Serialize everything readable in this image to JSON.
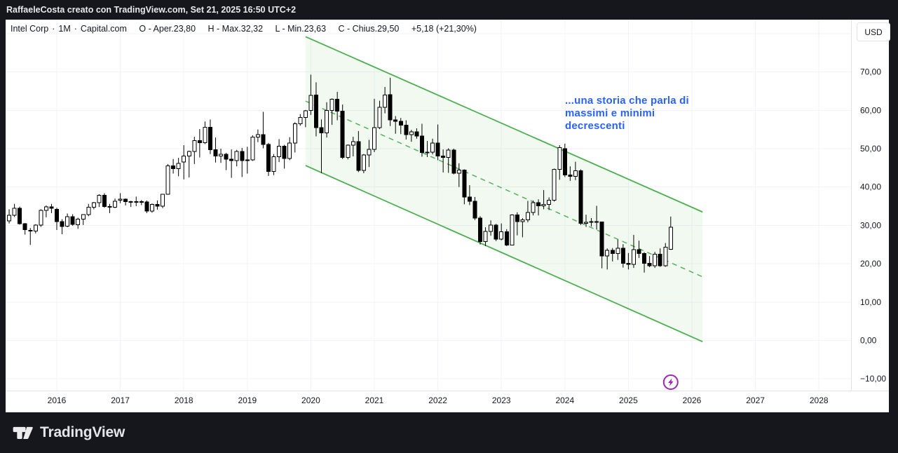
{
  "header": {
    "text": "RaffaeleCosta creato con TradingView.com, Set 21, 2025 16:50 UTC+2"
  },
  "legend": {
    "symbol": "Intel Corp",
    "sep": "·",
    "interval": "1M",
    "exchange": "Capital.com",
    "open_label": "O - Aper.",
    "open": "23,80",
    "high_label": "H - Max.",
    "high": "32,32",
    "low_label": "L - Min.",
    "low": "23,63",
    "close_label": "C - Chius.",
    "close": "29,50",
    "change": "+5,18 (+21,30%)"
  },
  "annotation": {
    "lines": [
      "...una storia che parla di",
      "massimi e minimi",
      "decrescenti"
    ],
    "color": "#2962ff"
  },
  "price_axis": {
    "currency_button": "USD",
    "ticks": [
      {
        "value": 70,
        "label": "70,00"
      },
      {
        "value": 60,
        "label": "60,00"
      },
      {
        "value": 50,
        "label": "50,00"
      },
      {
        "value": 40,
        "label": "40,00"
      },
      {
        "value": 30,
        "label": "30,00"
      },
      {
        "value": 20,
        "label": "20,00"
      },
      {
        "value": 10,
        "label": "10,00"
      },
      {
        "value": 0,
        "label": "0,00"
      },
      {
        "value": -10,
        "label": "−10,00"
      }
    ]
  },
  "time_axis": {
    "years": [
      "2016",
      "2017",
      "2018",
      "2019",
      "2020",
      "2021",
      "2022",
      "2023",
      "2024",
      "2025",
      "2026",
      "2027",
      "2028"
    ]
  },
  "footer": {
    "brand": "TradingView"
  },
  "colors": {
    "chrome_bg": "#16171c",
    "chrome_text": "#e8eaed",
    "panel_bg": "#ffffff",
    "grid": "#f0f3fa",
    "axis_border": "#e0e3eb",
    "text": "#131722",
    "channel": "#4caf50",
    "candle_up_fill": "#ffffff",
    "candle_down_fill": "#000000",
    "candle_border": "#000000",
    "event": "#9c27b0",
    "annotation_blue": "#2962ff"
  },
  "chart_data": {
    "type": "candlestick",
    "title": "Intel Corp · 1M · Capital.com",
    "currency": "USD",
    "interval": "monthly",
    "start_month": "2015-04",
    "last_month": "2025-09",
    "last_candle": {
      "open": 23.8,
      "high": 32.32,
      "low": 23.63,
      "close": 29.5,
      "change": 5.18,
      "change_pct": 21.3
    },
    "y_axis": {
      "labeled_ticks": [
        70,
        60,
        50,
        40,
        30,
        20,
        10,
        0,
        -10
      ],
      "gridlines": [
        80,
        70,
        60,
        50,
        40,
        30,
        20,
        10,
        0,
        -10
      ],
      "visible_range": [
        -13,
        83
      ]
    },
    "x_axis": {
      "gridline_years": [
        2016,
        2017,
        2018,
        2019,
        2020,
        2021,
        2022,
        2023,
        2024,
        2025,
        2026,
        2027,
        2028
      ]
    },
    "ohlc_monthly": [
      [
        31.2,
        34.2,
        30.5,
        32.6
      ],
      [
        32.6,
        35.6,
        32.2,
        34.5
      ],
      [
        34.5,
        34.9,
        30.2,
        30.4
      ],
      [
        30.4,
        30.6,
        27.6,
        28.9
      ],
      [
        28.7,
        29.3,
        24.9,
        28.5
      ],
      [
        28.5,
        30.3,
        27.9,
        30.1
      ],
      [
        30.1,
        34.2,
        29.6,
        33.9
      ],
      [
        33.9,
        35.2,
        32.1,
        34.8
      ],
      [
        34.8,
        35.6,
        33.2,
        34.5
      ],
      [
        34.2,
        34.6,
        28.8,
        31.0
      ],
      [
        31.0,
        31.6,
        27.7,
        29.7
      ],
      [
        29.8,
        33.1,
        29.5,
        32.3
      ],
      [
        32.3,
        32.9,
        29.9,
        30.3
      ],
      [
        30.2,
        32.0,
        29.1,
        31.6
      ],
      [
        31.6,
        32.9,
        30.1,
        32.8
      ],
      [
        32.8,
        35.6,
        32.4,
        34.7
      ],
      [
        34.7,
        36.1,
        34.2,
        35.9
      ],
      [
        35.9,
        38.1,
        34.8,
        37.8
      ],
      [
        37.8,
        38.4,
        34.6,
        34.9
      ],
      [
        34.9,
        35.6,
        33.2,
        34.7
      ],
      [
        34.7,
        37.0,
        34.5,
        36.3
      ],
      [
        36.6,
        38.4,
        35.8,
        36.8
      ],
      [
        36.8,
        37.0,
        35.2,
        36.2
      ],
      [
        36.2,
        36.4,
        34.8,
        36.1
      ],
      [
        36.1,
        37.5,
        35.0,
        36.2
      ],
      [
        36.2,
        36.6,
        35.3,
        36.1
      ],
      [
        36.1,
        36.5,
        33.2,
        33.7
      ],
      [
        33.7,
        35.7,
        33.3,
        35.5
      ],
      [
        35.5,
        36.5,
        34.1,
        35.0
      ],
      [
        35.0,
        38.2,
        34.5,
        38.1
      ],
      [
        38.1,
        46.0,
        38.0,
        45.5
      ],
      [
        45.5,
        47.3,
        43.5,
        44.8
      ],
      [
        44.8,
        47.6,
        42.8,
        46.2
      ],
      [
        46.5,
        50.9,
        42.0,
        48.1
      ],
      [
        48.1,
        49.5,
        42.5,
        49.3
      ],
      [
        49.3,
        53.1,
        46.0,
        52.1
      ],
      [
        52.1,
        55.1,
        47.7,
        51.6
      ],
      [
        51.6,
        57.1,
        51.2,
        55.6
      ],
      [
        55.6,
        57.6,
        48.6,
        49.7
      ],
      [
        49.7,
        52.9,
        46.4,
        48.1
      ],
      [
        48.1,
        50.0,
        46.3,
        48.5
      ],
      [
        48.5,
        48.9,
        44.4,
        47.3
      ],
      [
        47.3,
        49.8,
        42.4,
        46.9
      ],
      [
        46.9,
        49.7,
        45.4,
        49.3
      ],
      [
        49.3,
        50.2,
        42.6,
        46.9
      ],
      [
        46.9,
        50.5,
        43.5,
        47.1
      ],
      [
        47.1,
        53.5,
        46.8,
        53.0
      ],
      [
        53.0,
        55.0,
        51.7,
        53.7
      ],
      [
        53.7,
        59.6,
        50.1,
        51.1
      ],
      [
        51.1,
        51.5,
        42.9,
        44.1
      ],
      [
        44.1,
        48.6,
        43.1,
        47.9
      ],
      [
        47.9,
        52.5,
        46.5,
        50.6
      ],
      [
        50.6,
        51.0,
        44.8,
        47.4
      ],
      [
        47.4,
        53.0,
        47.0,
        51.5
      ],
      [
        51.5,
        56.9,
        49.0,
        56.5
      ],
      [
        56.5,
        59.0,
        56.0,
        58.1
      ],
      [
        58.1,
        60.1,
        55.6,
        59.9
      ],
      [
        60.0,
        69.3,
        58.8,
        63.9
      ],
      [
        64.0,
        67.3,
        53.2,
        55.5
      ],
      [
        55.5,
        57.6,
        43.6,
        54.1
      ],
      [
        54.1,
        62.1,
        52.9,
        60.0
      ],
      [
        60.0,
        63.1,
        56.2,
        62.9
      ],
      [
        62.9,
        64.8,
        57.4,
        59.8
      ],
      [
        59.8,
        61.5,
        47.3,
        47.7
      ],
      [
        47.7,
        51.1,
        47.2,
        50.9
      ],
      [
        50.9,
        53.1,
        48.0,
        51.8
      ],
      [
        51.8,
        54.6,
        43.9,
        44.3
      ],
      [
        44.3,
        48.6,
        43.6,
        48.4
      ],
      [
        48.4,
        52.3,
        45.2,
        49.8
      ],
      [
        49.8,
        63.0,
        49.1,
        55.5
      ],
      [
        55.5,
        62.5,
        55.1,
        60.8
      ],
      [
        60.8,
        66.1,
        59.2,
        64.0
      ],
      [
        64.1,
        68.5,
        55.9,
        57.5
      ],
      [
        57.5,
        58.5,
        53.9,
        57.1
      ],
      [
        57.1,
        58.0,
        53.8,
        56.1
      ],
      [
        56.1,
        57.4,
        52.4,
        53.7
      ],
      [
        53.7,
        54.9,
        51.8,
        54.4
      ],
      [
        54.4,
        55.3,
        52.6,
        53.3
      ],
      [
        53.3,
        56.5,
        47.9,
        49.0
      ],
      [
        49.0,
        52.0,
        47.8,
        49.1
      ],
      [
        49.1,
        52.6,
        48.5,
        51.5
      ],
      [
        51.5,
        56.3,
        47.0,
        48.1
      ],
      [
        48.1,
        49.8,
        43.8,
        47.7
      ],
      [
        47.7,
        50.1,
        43.7,
        49.6
      ],
      [
        49.6,
        50.0,
        43.3,
        43.6
      ],
      [
        43.6,
        46.2,
        40.0,
        44.4
      ],
      [
        44.4,
        44.6,
        35.5,
        37.4
      ],
      [
        37.4,
        40.5,
        35.3,
        36.3
      ],
      [
        36.3,
        37.4,
        31.4,
        31.9
      ],
      [
        31.9,
        32.4,
        25.0,
        25.8
      ],
      [
        25.8,
        29.5,
        24.6,
        28.4
      ],
      [
        28.4,
        31.3,
        27.3,
        30.1
      ],
      [
        30.1,
        30.4,
        25.9,
        26.4
      ],
      [
        26.4,
        30.5,
        26.1,
        28.3
      ],
      [
        28.3,
        29.0,
        24.6,
        24.9
      ],
      [
        24.9,
        32.9,
        24.8,
        32.7
      ],
      [
        32.7,
        33.4,
        27.4,
        31.0
      ],
      [
        31.0,
        31.9,
        26.9,
        31.4
      ],
      [
        31.4,
        36.4,
        30.8,
        33.4
      ],
      [
        33.4,
        36.5,
        32.6,
        35.9
      ],
      [
        35.9,
        36.8,
        32.6,
        35.1
      ],
      [
        35.1,
        39.2,
        34.2,
        35.5
      ],
      [
        35.5,
        37.3,
        34.0,
        36.6
      ],
      [
        36.6,
        44.8,
        36.2,
        44.6
      ],
      [
        44.6,
        50.9,
        41.9,
        50.3
      ],
      [
        50.0,
        51.3,
        42.6,
        43.1
      ],
      [
        43.1,
        45.4,
        41.6,
        42.8
      ],
      [
        42.8,
        46.6,
        41.8,
        44.2
      ],
      [
        44.2,
        44.6,
        30.1,
        30.5
      ],
      [
        30.5,
        32.8,
        29.6,
        30.8
      ],
      [
        30.8,
        31.9,
        29.7,
        31.0
      ],
      [
        31.0,
        35.1,
        28.9,
        30.9
      ],
      [
        30.9,
        31.0,
        18.8,
        22.0
      ],
      [
        22.0,
        24.0,
        18.5,
        23.5
      ],
      [
        23.5,
        24.1,
        20.6,
        22.7
      ],
      [
        22.7,
        26.3,
        21.0,
        24.0
      ],
      [
        24.0,
        25.1,
        19.0,
        20.1
      ],
      [
        20.1,
        22.8,
        18.5,
        19.8
      ],
      [
        19.8,
        27.5,
        18.9,
        23.7
      ],
      [
        23.7,
        26.0,
        21.5,
        22.7
      ],
      [
        22.7,
        23.0,
        17.7,
        20.1
      ],
      [
        20.1,
        22.0,
        19.1,
        19.5
      ],
      [
        19.5,
        23.1,
        18.9,
        22.5
      ],
      [
        22.5,
        24.0,
        19.2,
        19.5
      ],
      [
        19.5,
        25.4,
        19.2,
        24.3
      ],
      [
        23.8,
        32.3,
        23.6,
        29.5
      ]
    ],
    "drawings": {
      "parallel_channel": {
        "color": "#4caf50",
        "fill_opacity": 0.08,
        "midline_style": "dashed",
        "start_month": "2019-12",
        "end_month": "2026-03",
        "upper_start": 79.2,
        "lower_start": 45.6,
        "upper_end": 33.5,
        "lower_end": -0.3
      },
      "text_note": {
        "content": "...una storia che parla di massimi e minimi decrescenti",
        "color": "#2962ff"
      },
      "event_marker": {
        "month": "2025-09",
        "icon": "lightning",
        "color": "#9c27b0"
      }
    }
  }
}
